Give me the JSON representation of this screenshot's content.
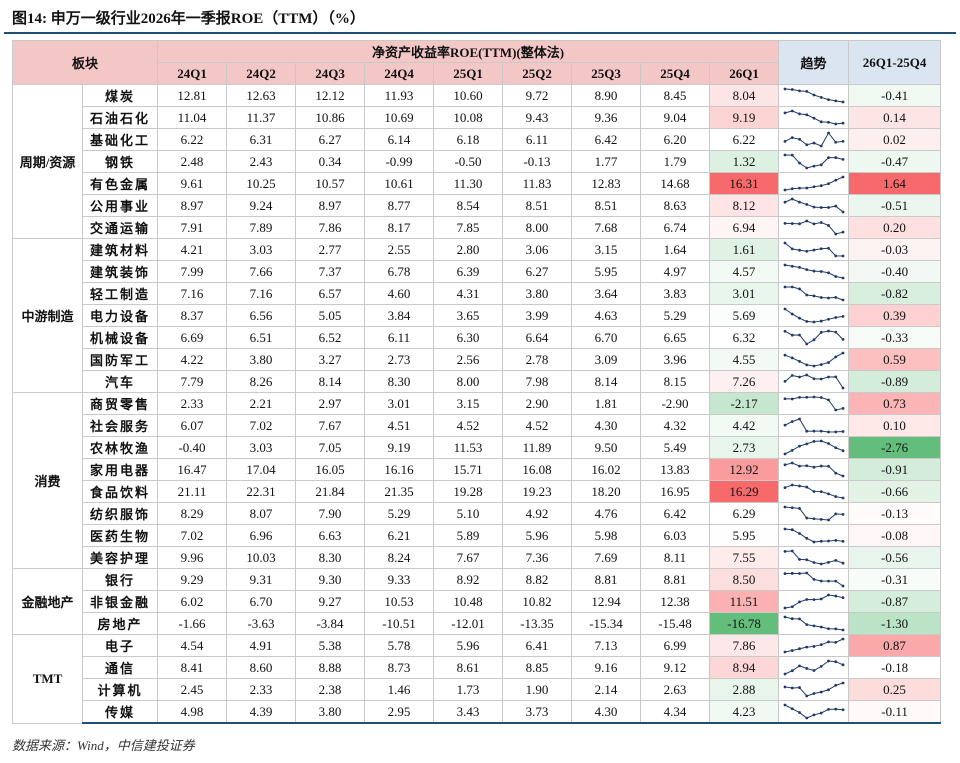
{
  "title": "图14: 申万一级行业2026年一季报ROE（TTM）（%）",
  "header": {
    "sector": "板块",
    "group": "净资产收益率ROE(TTM)(整体法)",
    "quarters": [
      "24Q1",
      "24Q2",
      "24Q3",
      "24Q4",
      "25Q1",
      "25Q2",
      "25Q3",
      "25Q4",
      "26Q1"
    ],
    "trend": "趋势",
    "change": "26Q1-25Q4"
  },
  "groups": [
    {
      "name": "周期/资源",
      "rows": [
        {
          "industry": "煤炭",
          "values": [
            "12.81",
            "12.63",
            "12.12",
            "11.93",
            "10.60",
            "9.72",
            "8.90",
            "8.45",
            "8.04"
          ],
          "change": "-0.41"
        },
        {
          "industry": "石油石化",
          "values": [
            "11.04",
            "11.37",
            "10.86",
            "10.69",
            "10.08",
            "9.43",
            "9.36",
            "9.04",
            "9.19"
          ],
          "change": "0.14"
        },
        {
          "industry": "基础化工",
          "values": [
            "6.22",
            "6.31",
            "6.27",
            "6.14",
            "6.18",
            "6.11",
            "6.42",
            "6.20",
            "6.22"
          ],
          "change": "0.02"
        },
        {
          "industry": "钢铁",
          "values": [
            "2.48",
            "2.43",
            "0.34",
            "-0.99",
            "-0.50",
            "-0.13",
            "1.77",
            "1.79",
            "1.32"
          ],
          "change": "-0.47"
        },
        {
          "industry": "有色金属",
          "values": [
            "9.61",
            "10.25",
            "10.57",
            "10.61",
            "11.30",
            "11.83",
            "12.83",
            "14.68",
            "16.31"
          ],
          "change": "1.64"
        },
        {
          "industry": "公用事业",
          "values": [
            "8.97",
            "9.24",
            "8.97",
            "8.77",
            "8.54",
            "8.51",
            "8.51",
            "8.63",
            "8.12"
          ],
          "change": "-0.51"
        },
        {
          "industry": "交通运输",
          "values": [
            "7.91",
            "7.89",
            "7.86",
            "8.17",
            "7.85",
            "8.00",
            "7.68",
            "6.74",
            "6.94"
          ],
          "change": "0.20"
        }
      ]
    },
    {
      "name": "中游制造",
      "rows": [
        {
          "industry": "建筑材料",
          "values": [
            "4.21",
            "3.03",
            "2.77",
            "2.55",
            "2.80",
            "3.06",
            "3.15",
            "1.64",
            "1.61"
          ],
          "change": "-0.03"
        },
        {
          "industry": "建筑装饰",
          "values": [
            "7.99",
            "7.66",
            "7.37",
            "6.78",
            "6.39",
            "6.27",
            "5.95",
            "4.97",
            "4.57"
          ],
          "change": "-0.40"
        },
        {
          "industry": "轻工制造",
          "values": [
            "7.16",
            "7.16",
            "6.57",
            "4.60",
            "4.31",
            "3.80",
            "3.64",
            "3.83",
            "3.01"
          ],
          "change": "-0.82"
        },
        {
          "industry": "电力设备",
          "values": [
            "8.37",
            "6.56",
            "5.05",
            "3.84",
            "3.65",
            "3.99",
            "4.63",
            "5.29",
            "5.69"
          ],
          "change": "0.39"
        },
        {
          "industry": "机械设备",
          "values": [
            "6.69",
            "6.51",
            "6.52",
            "6.11",
            "6.30",
            "6.64",
            "6.70",
            "6.65",
            "6.32"
          ],
          "change": "-0.33"
        },
        {
          "industry": "国防军工",
          "values": [
            "4.22",
            "3.80",
            "3.27",
            "2.73",
            "2.56",
            "2.78",
            "3.09",
            "3.96",
            "4.55"
          ],
          "change": "0.59"
        },
        {
          "industry": "汽车",
          "values": [
            "7.79",
            "8.26",
            "8.14",
            "8.30",
            "8.00",
            "7.98",
            "8.14",
            "8.15",
            "7.26"
          ],
          "change": "-0.89"
        }
      ]
    },
    {
      "name": "消费",
      "rows": [
        {
          "industry": "商贸零售",
          "values": [
            "2.33",
            "2.21",
            "2.97",
            "3.01",
            "3.15",
            "2.90",
            "1.81",
            "-2.90",
            "-2.17"
          ],
          "change": "0.73"
        },
        {
          "industry": "社会服务",
          "values": [
            "6.07",
            "7.02",
            "7.67",
            "4.51",
            "4.52",
            "4.52",
            "4.30",
            "4.32",
            "4.42"
          ],
          "change": "0.10"
        },
        {
          "industry": "农林牧渔",
          "values": [
            "-0.40",
            "3.03",
            "7.05",
            "9.19",
            "11.53",
            "11.89",
            "9.50",
            "5.49",
            "2.73"
          ],
          "change": "-2.76"
        },
        {
          "industry": "家用电器",
          "values": [
            "16.47",
            "17.04",
            "16.05",
            "16.16",
            "15.71",
            "16.08",
            "16.02",
            "13.83",
            "12.92"
          ],
          "change": "-0.91"
        },
        {
          "industry": "食品饮料",
          "values": [
            "21.11",
            "22.31",
            "21.84",
            "21.35",
            "19.28",
            "19.23",
            "18.20",
            "16.95",
            "16.29"
          ],
          "change": "-0.66"
        },
        {
          "industry": "纺织服饰",
          "values": [
            "8.29",
            "8.07",
            "7.90",
            "5.29",
            "5.10",
            "4.92",
            "4.76",
            "6.42",
            "6.29"
          ],
          "change": "-0.13"
        },
        {
          "industry": "医药生物",
          "values": [
            "7.02",
            "6.96",
            "6.63",
            "6.21",
            "5.89",
            "5.96",
            "5.98",
            "6.03",
            "5.95"
          ],
          "change": "-0.08"
        },
        {
          "industry": "美容护理",
          "values": [
            "9.96",
            "10.03",
            "8.30",
            "8.24",
            "7.67",
            "7.36",
            "7.69",
            "8.11",
            "7.55"
          ],
          "change": "-0.56"
        }
      ]
    },
    {
      "name": "金融地产",
      "rows": [
        {
          "industry": "银行",
          "values": [
            "9.29",
            "9.31",
            "9.30",
            "9.33",
            "8.92",
            "8.82",
            "8.81",
            "8.81",
            "8.50"
          ],
          "change": "-0.31"
        },
        {
          "industry": "非银金融",
          "values": [
            "6.02",
            "6.70",
            "9.27",
            "10.53",
            "10.48",
            "10.82",
            "12.94",
            "12.38",
            "11.51"
          ],
          "change": "-0.87"
        },
        {
          "industry": "房地产",
          "values": [
            "-1.66",
            "-3.63",
            "-3.84",
            "-10.51",
            "-12.01",
            "-13.35",
            "-15.34",
            "-15.48",
            "-16.78"
          ],
          "change": "-1.30"
        }
      ]
    },
    {
      "name": "TMT",
      "rows": [
        {
          "industry": "电子",
          "values": [
            "4.54",
            "4.91",
            "5.38",
            "5.78",
            "5.96",
            "6.41",
            "7.13",
            "6.99",
            "7.86"
          ],
          "change": "0.87"
        },
        {
          "industry": "通信",
          "values": [
            "8.41",
            "8.60",
            "8.88",
            "8.73",
            "8.61",
            "8.85",
            "9.16",
            "9.12",
            "8.94"
          ],
          "change": "-0.18"
        },
        {
          "industry": "计算机",
          "values": [
            "2.45",
            "2.33",
            "2.38",
            "1.46",
            "1.73",
            "1.90",
            "2.14",
            "2.63",
            "2.88"
          ],
          "change": "0.25"
        },
        {
          "industry": "传媒",
          "values": [
            "4.98",
            "4.39",
            "3.80",
            "2.95",
            "3.43",
            "3.73",
            "4.30",
            "4.34",
            "4.23"
          ],
          "change": "-0.11"
        }
      ]
    }
  ],
  "source": "数据来源：Wind，中信建投证券"
}
